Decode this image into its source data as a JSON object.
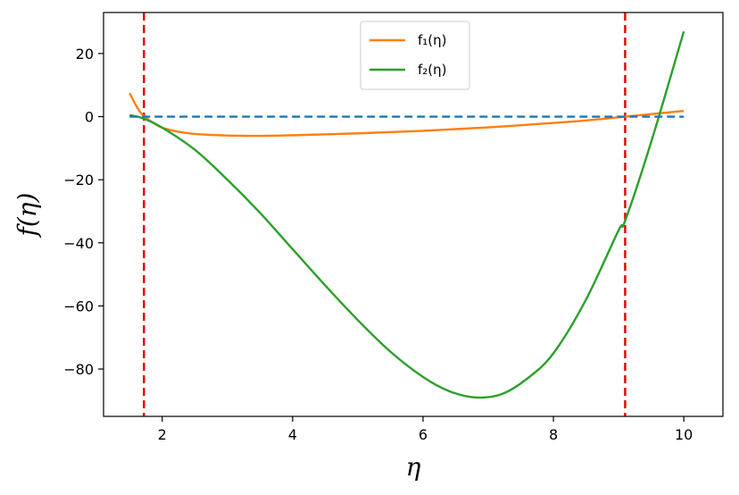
{
  "chart_data": {
    "type": "line",
    "xlabel": "η",
    "ylabel": "f(η)",
    "xlim": [
      1.1,
      10.6
    ],
    "ylim": [
      -95,
      33
    ],
    "x_ticks": [
      2,
      4,
      6,
      8,
      10
    ],
    "y_ticks": [
      20,
      0,
      -20,
      -40,
      -60,
      -80
    ],
    "x_tick_labels": [
      "2",
      "4",
      "6",
      "8",
      "10"
    ],
    "y_tick_labels": [
      "20",
      "0",
      "−20",
      "−40",
      "−60",
      "−80"
    ],
    "grid": false,
    "legend_position": "top-center",
    "series": [
      {
        "name": "f₁(η)",
        "color": "#ff7f0e",
        "x": [
          1.5,
          1.6,
          1.7,
          1.85,
          2.0,
          2.25,
          2.5,
          3.0,
          3.5,
          4.0,
          5.0,
          6.0,
          7.0,
          8.0,
          8.5,
          9.1,
          9.5,
          10.0
        ],
        "y": [
          7.5,
          3.5,
          0.5,
          -1.8,
          -3.5,
          -4.8,
          -5.5,
          -6.0,
          -6.1,
          -5.9,
          -5.3,
          -4.5,
          -3.4,
          -2.0,
          -1.2,
          0.0,
          0.8,
          1.8
        ]
      },
      {
        "name": "f₂(η)",
        "color": "#2ca02c",
        "x": [
          1.5,
          1.7,
          2.0,
          2.5,
          3.0,
          3.5,
          4.0,
          4.5,
          5.0,
          5.5,
          6.0,
          6.4,
          6.8,
          7.2,
          7.6,
          8.0,
          8.5,
          9.0,
          9.1,
          9.5,
          10.0
        ],
        "y": [
          0.5,
          -0.5,
          -3.5,
          -10.5,
          -20.0,
          -30.5,
          -42.0,
          -53.5,
          -64.5,
          -74.5,
          -82.5,
          -87.0,
          -89.0,
          -88.0,
          -83.0,
          -75.0,
          -58.0,
          -36.0,
          -33.0,
          -8.0,
          27.0
        ]
      },
      {
        "name": "",
        "color": "#1f77b4",
        "style": "dashed",
        "x": [
          1.5,
          10.0
        ],
        "y": [
          0,
          0
        ]
      }
    ],
    "vlines": [
      {
        "x": 1.72,
        "color": "#e00000",
        "style": "dashed"
      },
      {
        "x": 9.1,
        "color": "#e00000",
        "style": "dashed"
      }
    ]
  }
}
